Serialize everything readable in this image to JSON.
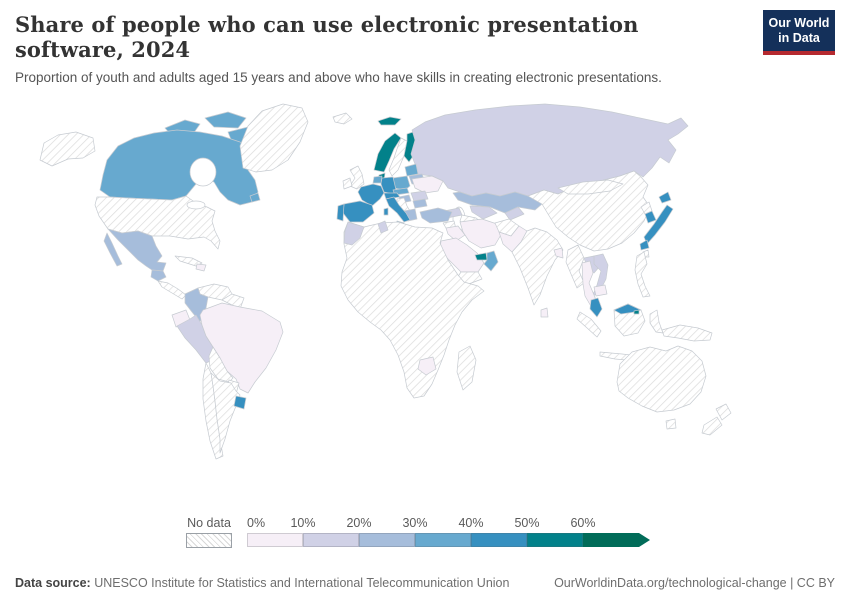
{
  "header": {
    "title": "Share of people who can use electronic presentation software, 2024",
    "subtitle": "Proportion of youth and adults aged 15 years and above who have skills in creating electronic presentations.",
    "logo": {
      "line1": "Our World",
      "line2": "in Data",
      "bg_color": "#14305a",
      "accent_color": "#b5292f"
    }
  },
  "chart_data": {
    "type": "choropleth_map",
    "title": "Share of people who can use electronic presentation software",
    "year": 2024,
    "unit": "%",
    "legend": {
      "position": "bottom",
      "no_data_label": "No data",
      "bins": [
        {
          "label": "0%",
          "range": "0-10%",
          "color": "#f6eff7"
        },
        {
          "label": "10%",
          "range": "10-20%",
          "color": "#d0d1e6"
        },
        {
          "label": "20%",
          "range": "20-30%",
          "color": "#a6bddb"
        },
        {
          "label": "30%",
          "range": "30-40%",
          "color": "#67a9cf"
        },
        {
          "label": "40%",
          "range": "40-50%",
          "color": "#3690c0"
        },
        {
          "label": "50%",
          "range": "50-60%",
          "color": "#02818a"
        },
        {
          "label": "60%",
          "range": "60%+",
          "color": "#016c59"
        }
      ]
    },
    "countries": {
      "Canada": 3,
      "Mexico": 2,
      "Guatemala": 2,
      "Dominican Republic": 0,
      "Colombia": 2,
      "Ecuador": 0,
      "Peru": 1,
      "Brazil": 0,
      "Uruguay": 4,
      "Norway": 5,
      "Svalbard (Norway)": 5,
      "Finland": 5,
      "Denmark": 5,
      "Germany": 4,
      "Netherlands & Belgium": 3,
      "France": 4,
      "Spain": 4,
      "Portugal": 4,
      "Italy": 4,
      "Switzerland & Austria": 4,
      "Czechia & Slovakia": 3,
      "Poland": 3,
      "Baltic states": 3,
      "Belarus": 2,
      "Hungary": 2,
      "Ukraine": 0,
      "Romania": 1,
      "Bulgaria": 2,
      "Greece": 2,
      "Russia": 1,
      "Kazakhstan": 2,
      "Uzbekistan": 1,
      "Kyrgyzstan & Tajikistan": 1,
      "Azerbaijan & Georgia": 1,
      "Turkey": 2,
      "Iraq": 0,
      "Iran": 0,
      "Saudi Arabia": 0,
      "United Arab Emirates": 5,
      "Oman": 3,
      "Morocco": 1,
      "Tunisia": 1,
      "Zimbabwe": 0,
      "Pakistan": 0,
      "Bangladesh": 0,
      "Sri Lanka": 0,
      "Japan": 4,
      "South Korea": 4,
      "Laos": 1,
      "Vietnam": 1,
      "Thailand": 0,
      "Cambodia": 0,
      "Malaysia": 4,
      "Brunei": 5
    },
    "no_data_countries": [
      "United States",
      "Greenland",
      "Iceland",
      "Sweden",
      "United Kingdom",
      "Ireland",
      "Cuba",
      "Venezuela",
      "Bolivia",
      "Paraguay",
      "Chile",
      "Argentina",
      "Most of Africa",
      "Madagascar",
      "Syria",
      "Yemen",
      "Turkmenistan",
      "Afghanistan",
      "India",
      "China",
      "Mongolia",
      "North Korea",
      "Taiwan",
      "Myanmar",
      "Indonesia",
      "Philippines",
      "Papua New Guinea",
      "Australia",
      "New Zealand"
    ]
  },
  "footer": {
    "source_label": "Data source:",
    "source_text": " UNESCO Institute for Statistics and International Telecommunication Union",
    "attribution": "OurWorldinData.org/technological-change | CC BY"
  }
}
